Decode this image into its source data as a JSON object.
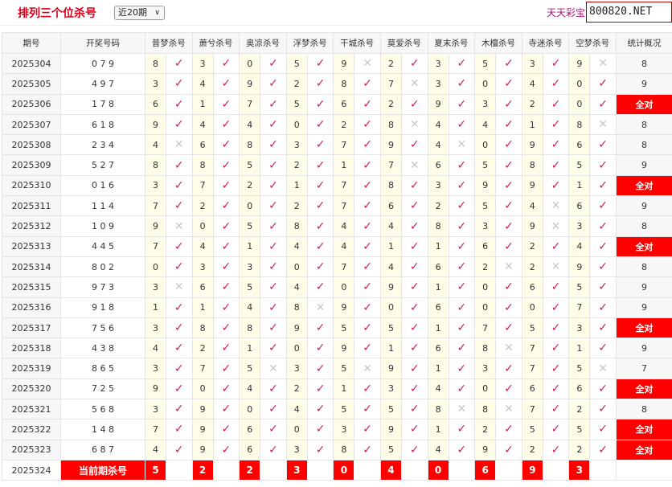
{
  "header": {
    "title": "排列三个位杀号",
    "period_select": "近20期",
    "slogan": "天天彩宝贝，",
    "site": "800820.NET"
  },
  "columns": [
    "期号",
    "开奖号码",
    "普梦杀号",
    "萧兮杀号",
    "奥凉杀号",
    "浮梦杀号",
    "干城杀号",
    "莫爱杀号",
    "夏末杀号",
    "木檀杀号",
    "寺迷杀号",
    "空梦杀号",
    "统计概况"
  ],
  "rows": [
    {
      "issue": "2025304",
      "draw": "0 7 9",
      "kills": [
        8,
        3,
        0,
        5,
        9,
        2,
        3,
        5,
        3,
        9
      ],
      "marks": "vvvvxvvvvx",
      "stat": "8"
    },
    {
      "issue": "2025305",
      "draw": "4 9 7",
      "kills": [
        3,
        4,
        9,
        2,
        8,
        7,
        3,
        0,
        4,
        0
      ],
      "marks": "vvvvvxvvvv",
      "stat": "9"
    },
    {
      "issue": "2025306",
      "draw": "1 7 8",
      "kills": [
        6,
        1,
        7,
        5,
        6,
        2,
        9,
        3,
        2,
        0
      ],
      "marks": "vvvvvvvvvv",
      "stat": "全对"
    },
    {
      "issue": "2025307",
      "draw": "6 1 8",
      "kills": [
        9,
        4,
        4,
        0,
        2,
        8,
        4,
        4,
        1,
        8
      ],
      "marks": "vvvvvxvvvx",
      "stat": "8"
    },
    {
      "issue": "2025308",
      "draw": "2 3 4",
      "kills": [
        4,
        6,
        8,
        3,
        7,
        9,
        4,
        0,
        9,
        6
      ],
      "marks": "xvvvvvxvvv",
      "stat": "8"
    },
    {
      "issue": "2025309",
      "draw": "5 2 7",
      "kills": [
        8,
        8,
        5,
        2,
        1,
        7,
        6,
        5,
        8,
        5
      ],
      "marks": "vvvvvxvvvv",
      "stat": "9"
    },
    {
      "issue": "2025310",
      "draw": "0 1 6",
      "kills": [
        3,
        7,
        2,
        1,
        7,
        8,
        3,
        9,
        9,
        1
      ],
      "marks": "vvvvvvvvvv",
      "stat": "全对"
    },
    {
      "issue": "2025311",
      "draw": "1 1 4",
      "kills": [
        7,
        2,
        0,
        2,
        7,
        6,
        2,
        5,
        4,
        6
      ],
      "marks": "vvvvvvvvxv",
      "stat": "9"
    },
    {
      "issue": "2025312",
      "draw": "1 0 9",
      "kills": [
        9,
        0,
        5,
        8,
        4,
        4,
        8,
        3,
        9,
        3
      ],
      "marks": "xvvvvvvvxv",
      "stat": "8"
    },
    {
      "issue": "2025313",
      "draw": "4 4 5",
      "kills": [
        7,
        4,
        1,
        4,
        4,
        1,
        1,
        6,
        2,
        4
      ],
      "marks": "vvvvvvvvvv",
      "stat": "全对"
    },
    {
      "issue": "2025314",
      "draw": "8 0 2",
      "kills": [
        0,
        3,
        3,
        0,
        7,
        4,
        6,
        2,
        2,
        9
      ],
      "marks": "vvvvvvvxxv",
      "stat": "8"
    },
    {
      "issue": "2025315",
      "draw": "9 7 3",
      "kills": [
        3,
        6,
        5,
        4,
        0,
        9,
        1,
        0,
        6,
        5
      ],
      "marks": "xvvvvvvvvv",
      "stat": "9"
    },
    {
      "issue": "2025316",
      "draw": "9 1 8",
      "kills": [
        1,
        1,
        4,
        8,
        9,
        0,
        6,
        0,
        0,
        7
      ],
      "marks": "vvvxvvvvvv",
      "stat": "9"
    },
    {
      "issue": "2025317",
      "draw": "7 5 6",
      "kills": [
        3,
        8,
        8,
        9,
        5,
        5,
        1,
        7,
        5,
        3
      ],
      "marks": "vvvvvvvvvv",
      "stat": "全对"
    },
    {
      "issue": "2025318",
      "draw": "4 3 8",
      "kills": [
        4,
        2,
        1,
        0,
        9,
        1,
        6,
        8,
        7,
        1
      ],
      "marks": "vvvvvvvxvv",
      "stat": "9"
    },
    {
      "issue": "2025319",
      "draw": "8 6 5",
      "kills": [
        3,
        7,
        5,
        3,
        5,
        9,
        1,
        3,
        7,
        5
      ],
      "marks": "vvxvxvvvvx",
      "stat": "7"
    },
    {
      "issue": "2025320",
      "draw": "7 2 5",
      "kills": [
        9,
        0,
        4,
        2,
        1,
        3,
        4,
        0,
        6,
        6
      ],
      "marks": "vvvvvvvvvv",
      "stat": "全对"
    },
    {
      "issue": "2025321",
      "draw": "5 6 8",
      "kills": [
        3,
        9,
        0,
        4,
        5,
        5,
        8,
        8,
        7,
        2
      ],
      "marks": "vvvvvvxxvv",
      "stat": "8"
    },
    {
      "issue": "2025322",
      "draw": "1 4 8",
      "kills": [
        7,
        9,
        6,
        0,
        3,
        9,
        1,
        2,
        5,
        5
      ],
      "marks": "vvvvvvvvvv",
      "stat": "全对"
    },
    {
      "issue": "2025323",
      "draw": "6 8 7",
      "kills": [
        4,
        9,
        6,
        3,
        8,
        5,
        4,
        9,
        2,
        2
      ],
      "marks": "vvvvvvvvvv",
      "stat": "全对"
    }
  ],
  "current": {
    "issue": "2025324",
    "label": "当前期杀号",
    "kills": [
      5,
      2,
      2,
      3,
      0,
      4,
      0,
      6,
      9,
      3
    ]
  },
  "icons": {
    "hit": "check-icon",
    "miss": "cross-icon"
  },
  "colors": {
    "accent": "#ff0000",
    "check": "#d0204a"
  }
}
